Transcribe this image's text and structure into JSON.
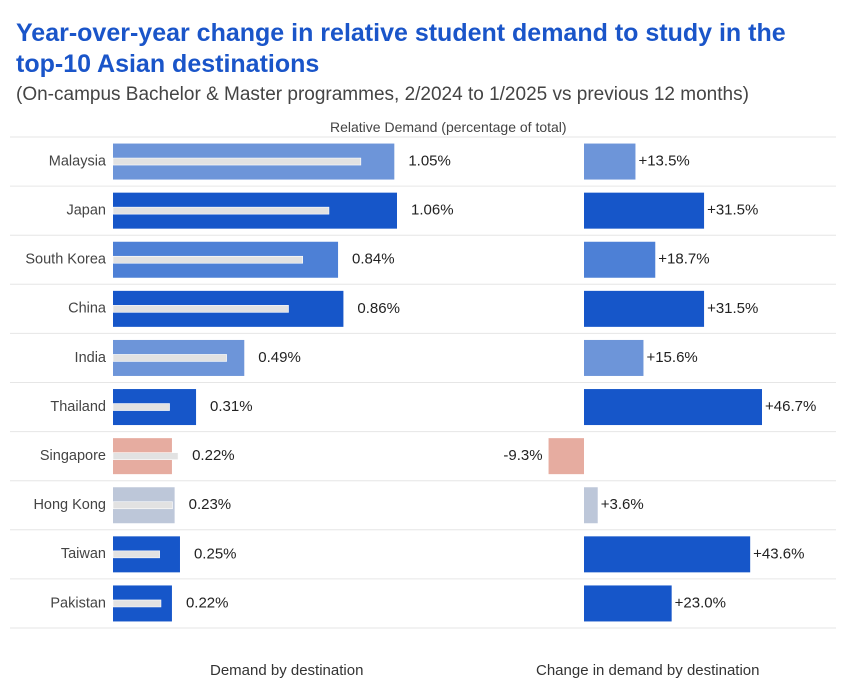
{
  "header": {
    "title": "Year-over-year change in relative student demand to study in the top-10 Asian destinations",
    "subtitle": "(On-campus Bachelor & Master programmes, 2/2024 to 1/2025 vs previous 12 months)"
  },
  "footer": {
    "left_label": "Demand by destination",
    "right_label": "Change in demand by destination"
  },
  "colors": {
    "strong_blue": "#1656c9",
    "mid_blue": "#4d80d6",
    "light_blue": "#6d95d9",
    "negative": "#e6aca0",
    "neutral": "#bdc7d9",
    "previous_bar": "#e2e2e2",
    "gridline": "#e6e6e6"
  },
  "chart_data": [
    {
      "type": "bar",
      "orientation": "horizontal",
      "title": "Demand by destination",
      "xlabel": "Relative Demand (percentage of total)",
      "categories": [
        "Malaysia",
        "Japan",
        "South Korea",
        "China",
        "India",
        "Thailand",
        "Singapore",
        "Hong Kong",
        "Taiwan",
        "Pakistan"
      ],
      "series": [
        {
          "values": [
            1.05,
            1.06,
            0.84,
            0.86,
            0.49,
            0.31,
            0.22,
            0.23,
            0.25,
            0.22
          ],
          "labels": [
            "1.05%",
            "1.06%",
            "0.84%",
            "0.86%",
            "0.49%",
            "0.31%",
            "0.22%",
            "0.23%",
            "0.25%",
            "0.22%"
          ]
        },
        {
          "values": [
            0.925,
            0.806,
            0.708,
            0.655,
            0.424,
            0.211,
            0.243,
            0.222,
            0.174,
            0.179
          ]
        }
      ],
      "colors": [
        "#6d95d9",
        "#1656c9",
        "#4d80d6",
        "#1656c9",
        "#6d95d9",
        "#1656c9",
        "#e6aca0",
        "#bdc7d9",
        "#1656c9",
        "#1656c9"
      ],
      "xlim": [
        0,
        1.06
      ],
      "grid": false,
      "legend": "none"
    },
    {
      "type": "bar",
      "orientation": "horizontal",
      "title": "Change in demand by destination",
      "categories": [
        "Malaysia",
        "Japan",
        "South Korea",
        "China",
        "India",
        "Thailand",
        "Singapore",
        "Hong Kong",
        "Taiwan",
        "Pakistan"
      ],
      "values": [
        13.5,
        31.5,
        18.7,
        31.5,
        15.6,
        46.7,
        -9.3,
        3.6,
        43.6,
        23.0
      ],
      "labels": [
        "+13.5%",
        "+31.5%",
        "+18.7%",
        "+31.5%",
        "+15.6%",
        "+46.7%",
        "-9.3%",
        "+3.6%",
        "+43.6%",
        "+23.0%"
      ],
      "colors": [
        "#6d95d9",
        "#1656c9",
        "#4d80d6",
        "#1656c9",
        "#6d95d9",
        "#1656c9",
        "#e6aca0",
        "#bdc7d9",
        "#1656c9",
        "#1656c9"
      ],
      "xlim": [
        -9.3,
        46.7
      ],
      "grid": false,
      "legend": "none"
    }
  ]
}
